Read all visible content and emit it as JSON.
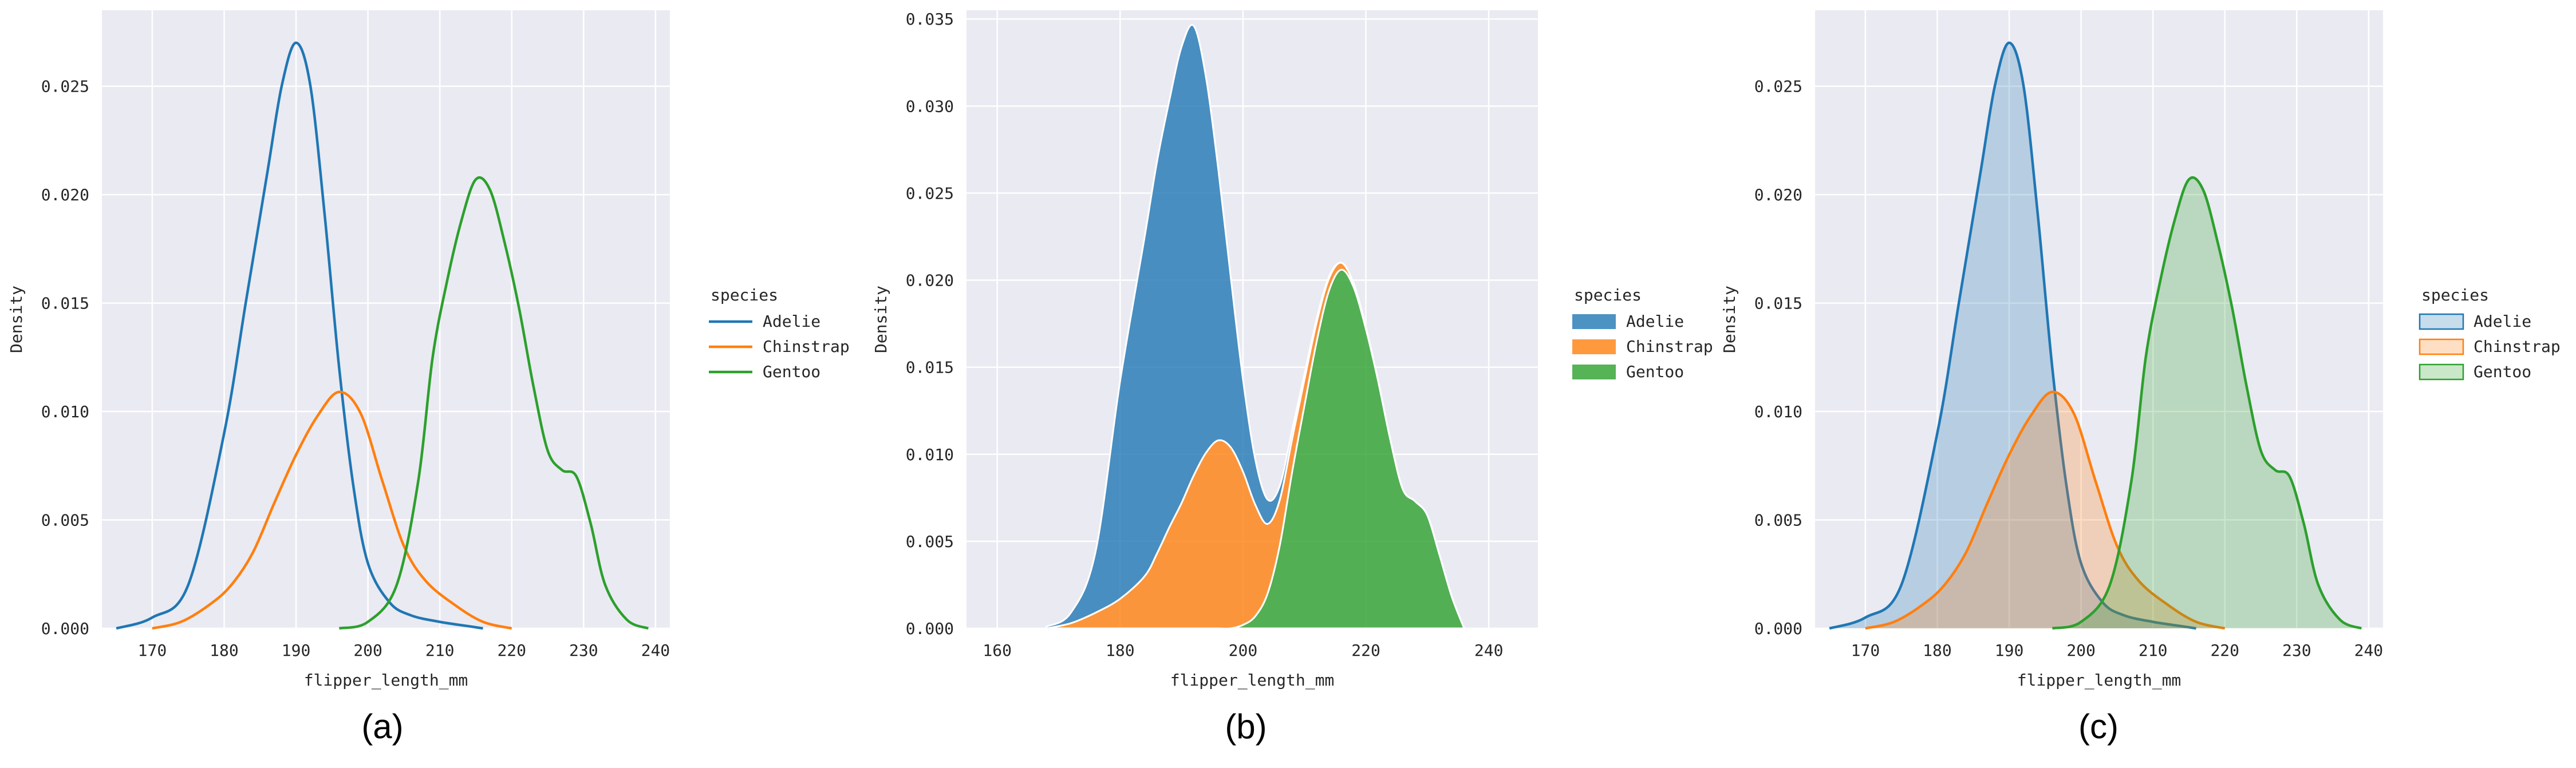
{
  "figure": {
    "captions": [
      "(a)",
      "(b)",
      "(c)"
    ]
  },
  "colors": {
    "Adelie": "#1f77b4",
    "Chinstrap": "#ff7f0e",
    "Gentoo": "#2ca02c",
    "panel_background": "#eaeaf2",
    "grid": "#ffffff"
  },
  "chart_data": [
    {
      "type": "line",
      "caption": "(a)",
      "style": "kde lines",
      "xlabel": "flipper_length_mm",
      "ylabel": "Density",
      "xlim": [
        163,
        242
      ],
      "ylim": [
        0,
        0.0285
      ],
      "xticks": [
        "170",
        "180",
        "190",
        "200",
        "210",
        "220",
        "230",
        "240"
      ],
      "yticks": [
        "0.000",
        "0.005",
        "0.010",
        "0.015",
        "0.020",
        "0.025"
      ],
      "grid": true,
      "legend": {
        "title": "species",
        "placement": "right",
        "entries": [
          "Adelie",
          "Chinstrap",
          "Gentoo"
        ]
      },
      "series": [
        {
          "name": "Adelie",
          "x": [
            165,
            170,
            175,
            180,
            183,
            186,
            188,
            190,
            192,
            194,
            196,
            198,
            200,
            203,
            206,
            210,
            214,
            216
          ],
          "values": [
            0,
            0.0005,
            0.002,
            0.009,
            0.015,
            0.021,
            0.025,
            0.027,
            0.025,
            0.019,
            0.012,
            0.0065,
            0.003,
            0.0012,
            0.0006,
            0.0003,
            0.0001,
            0
          ]
        },
        {
          "name": "Chinstrap",
          "x": [
            170,
            174,
            178,
            181,
            184,
            187,
            190,
            193,
            196,
            199,
            202,
            205,
            208,
            212,
            216,
            220
          ],
          "values": [
            0,
            0.0003,
            0.0011,
            0.002,
            0.0035,
            0.0058,
            0.008,
            0.0098,
            0.0109,
            0.0099,
            0.0068,
            0.0038,
            0.0022,
            0.0011,
            0.0003,
            0
          ]
        },
        {
          "name": "Gentoo",
          "x": [
            196,
            200,
            204,
            207,
            209,
            211,
            213,
            215,
            217,
            219,
            221,
            223,
            225,
            227,
            229,
            231,
            233,
            236,
            239
          ],
          "values": [
            0,
            0.0003,
            0.002,
            0.0068,
            0.0125,
            0.016,
            0.0188,
            0.0207,
            0.0202,
            0.0178,
            0.0148,
            0.0112,
            0.0082,
            0.0073,
            0.007,
            0.0048,
            0.002,
            0.0004,
            0
          ]
        }
      ]
    },
    {
      "type": "area",
      "caption": "(b)",
      "style": "stacked kde",
      "xlabel": "flipper_length_mm",
      "ylabel": "Density",
      "xlim": [
        155,
        248
      ],
      "ylim": [
        0,
        0.0355
      ],
      "xticks": [
        "160",
        "180",
        "200",
        "220",
        "240"
      ],
      "yticks": [
        "0.000",
        "0.005",
        "0.010",
        "0.015",
        "0.020",
        "0.025",
        "0.030",
        "0.035"
      ],
      "grid": true,
      "legend": {
        "title": "species",
        "placement": "right",
        "entries": [
          "Adelie",
          "Chinstrap",
          "Gentoo"
        ]
      },
      "stack_order": [
        "Gentoo",
        "Chinstrap",
        "Adelie"
      ],
      "x": [
        168,
        172,
        176,
        180,
        184,
        186,
        188,
        190,
        192,
        194,
        196,
        198,
        200,
        202,
        204,
        206,
        208,
        210,
        212,
        214,
        216,
        218,
        220,
        222,
        224,
        226,
        228,
        230,
        232,
        234,
        236
      ],
      "series": [
        {
          "name": "Gentoo",
          "values": [
            0,
            0,
            0,
            0,
            0,
            0,
            0,
            0,
            0,
            0,
            0,
            0,
            0.0002,
            0.0007,
            0.002,
            0.0048,
            0.009,
            0.0128,
            0.0165,
            0.0194,
            0.0206,
            0.0196,
            0.0172,
            0.0142,
            0.0108,
            0.008,
            0.0073,
            0.0065,
            0.0042,
            0.0018,
            0
          ]
        },
        {
          "name": "Chinstrap",
          "values": [
            0,
            0.0003,
            0.0009,
            0.0017,
            0.003,
            0.0043,
            0.0058,
            0.0072,
            0.0088,
            0.0101,
            0.0108,
            0.0104,
            0.0088,
            0.0064,
            0.004,
            0.0026,
            0.0019,
            0.0015,
            0.0011,
            0.0007,
            0.0004,
            0.0002,
            0.0001,
            0,
            0,
            0,
            0,
            0,
            0,
            0,
            0
          ]
        },
        {
          "name": "Adelie",
          "values": [
            0.0001,
            0.0006,
            0.0035,
            0.0125,
            0.0195,
            0.0225,
            0.0245,
            0.0262,
            0.0258,
            0.0215,
            0.0155,
            0.0098,
            0.0053,
            0.0026,
            0.0014,
            0.0008,
            0.0005,
            0.0003,
            0.0002,
            0.0001,
            0,
            0,
            0,
            0,
            0,
            0,
            0,
            0,
            0,
            0,
            0
          ]
        }
      ]
    },
    {
      "type": "area",
      "caption": "(c)",
      "style": "filled kde",
      "xlabel": "flipper_length_mm",
      "ylabel": "Density",
      "xlim": [
        163,
        242
      ],
      "ylim": [
        0,
        0.0285
      ],
      "xticks": [
        "170",
        "180",
        "190",
        "200",
        "210",
        "220",
        "230",
        "240"
      ],
      "yticks": [
        "0.000",
        "0.005",
        "0.010",
        "0.015",
        "0.020",
        "0.025"
      ],
      "grid": true,
      "legend": {
        "title": "species",
        "placement": "right",
        "entries": [
          "Adelie",
          "Chinstrap",
          "Gentoo"
        ]
      },
      "series": [
        {
          "name": "Adelie",
          "x": [
            165,
            170,
            175,
            180,
            183,
            186,
            188,
            190,
            192,
            194,
            196,
            198,
            200,
            203,
            206,
            210,
            214,
            216
          ],
          "values": [
            0,
            0.0005,
            0.002,
            0.009,
            0.015,
            0.021,
            0.025,
            0.027,
            0.025,
            0.019,
            0.012,
            0.0065,
            0.003,
            0.0012,
            0.0006,
            0.0003,
            0.0001,
            0
          ]
        },
        {
          "name": "Chinstrap",
          "x": [
            170,
            174,
            178,
            181,
            184,
            187,
            190,
            193,
            196,
            199,
            202,
            205,
            208,
            212,
            216,
            220
          ],
          "values": [
            0,
            0.0003,
            0.0011,
            0.002,
            0.0035,
            0.0058,
            0.008,
            0.0098,
            0.0109,
            0.0099,
            0.0068,
            0.0038,
            0.0022,
            0.0011,
            0.0003,
            0
          ]
        },
        {
          "name": "Gentoo",
          "x": [
            196,
            200,
            204,
            207,
            209,
            211,
            213,
            215,
            217,
            219,
            221,
            223,
            225,
            227,
            229,
            231,
            233,
            236,
            239
          ],
          "values": [
            0,
            0.0003,
            0.002,
            0.0068,
            0.0125,
            0.016,
            0.0188,
            0.0207,
            0.0202,
            0.0178,
            0.0148,
            0.0112,
            0.0082,
            0.0073,
            0.007,
            0.0048,
            0.002,
            0.0004,
            0
          ]
        }
      ]
    }
  ]
}
